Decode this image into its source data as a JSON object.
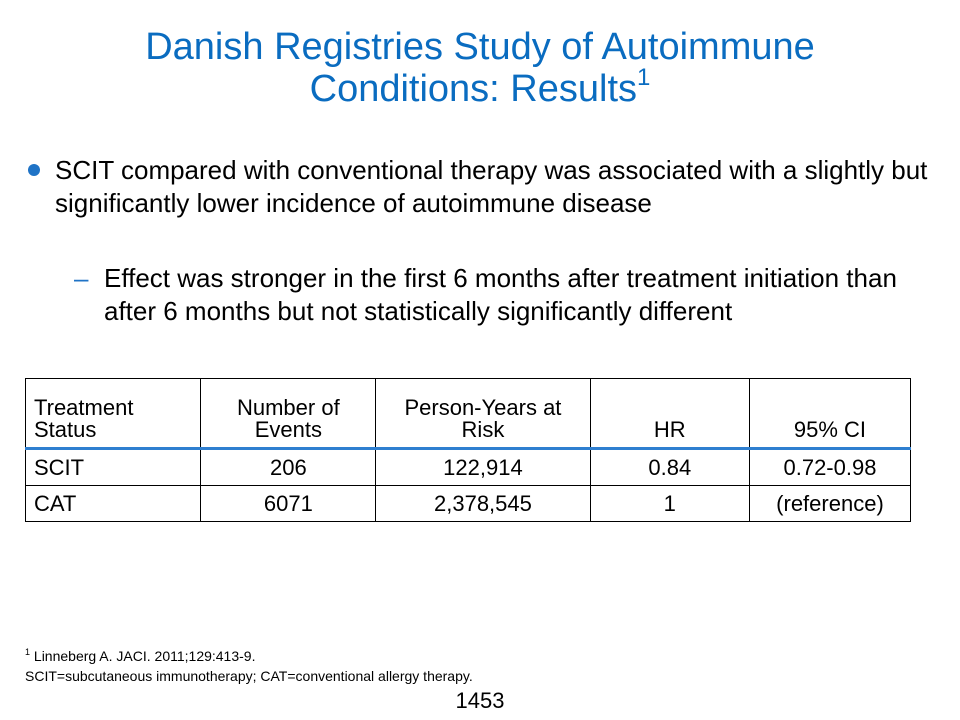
{
  "slide": {
    "title_line1": "Danish Registries Study of Autoimmune",
    "title_line2": "Conditions: Results",
    "title_superscript": "1",
    "bullet": "SCIT compared with conventional therapy was associated with a slightly but significantly lower incidence of autoimmune disease",
    "sub_bullet_marker": "–",
    "sub_bullet": "Effect was stronger in the first 6 months after treatment initiation than after 6 months but not statistically significantly different",
    "table": {
      "headers": [
        "Treatment Status",
        "Number of Events",
        "Person-Years at Risk",
        "HR",
        "95% CI"
      ],
      "rows": [
        [
          "SCIT",
          "206",
          "122,914",
          "0.84",
          "0.72-0.98"
        ],
        [
          "CAT",
          "6071",
          "2,378,545",
          "1",
          "(reference)"
        ]
      ]
    },
    "footnote_marker": "1",
    "footnote_ref": " Linneberg A. JACI. 2011;129:413-9.",
    "footnote_abbrev": "SCIT=subcutaneous immunotherapy; CAT=conventional allergy therapy.",
    "slide_number": "1453"
  },
  "colors": {
    "title": "#0a6cc0",
    "accent": "#1f73c6",
    "table_rule": "#2f7fd0"
  }
}
